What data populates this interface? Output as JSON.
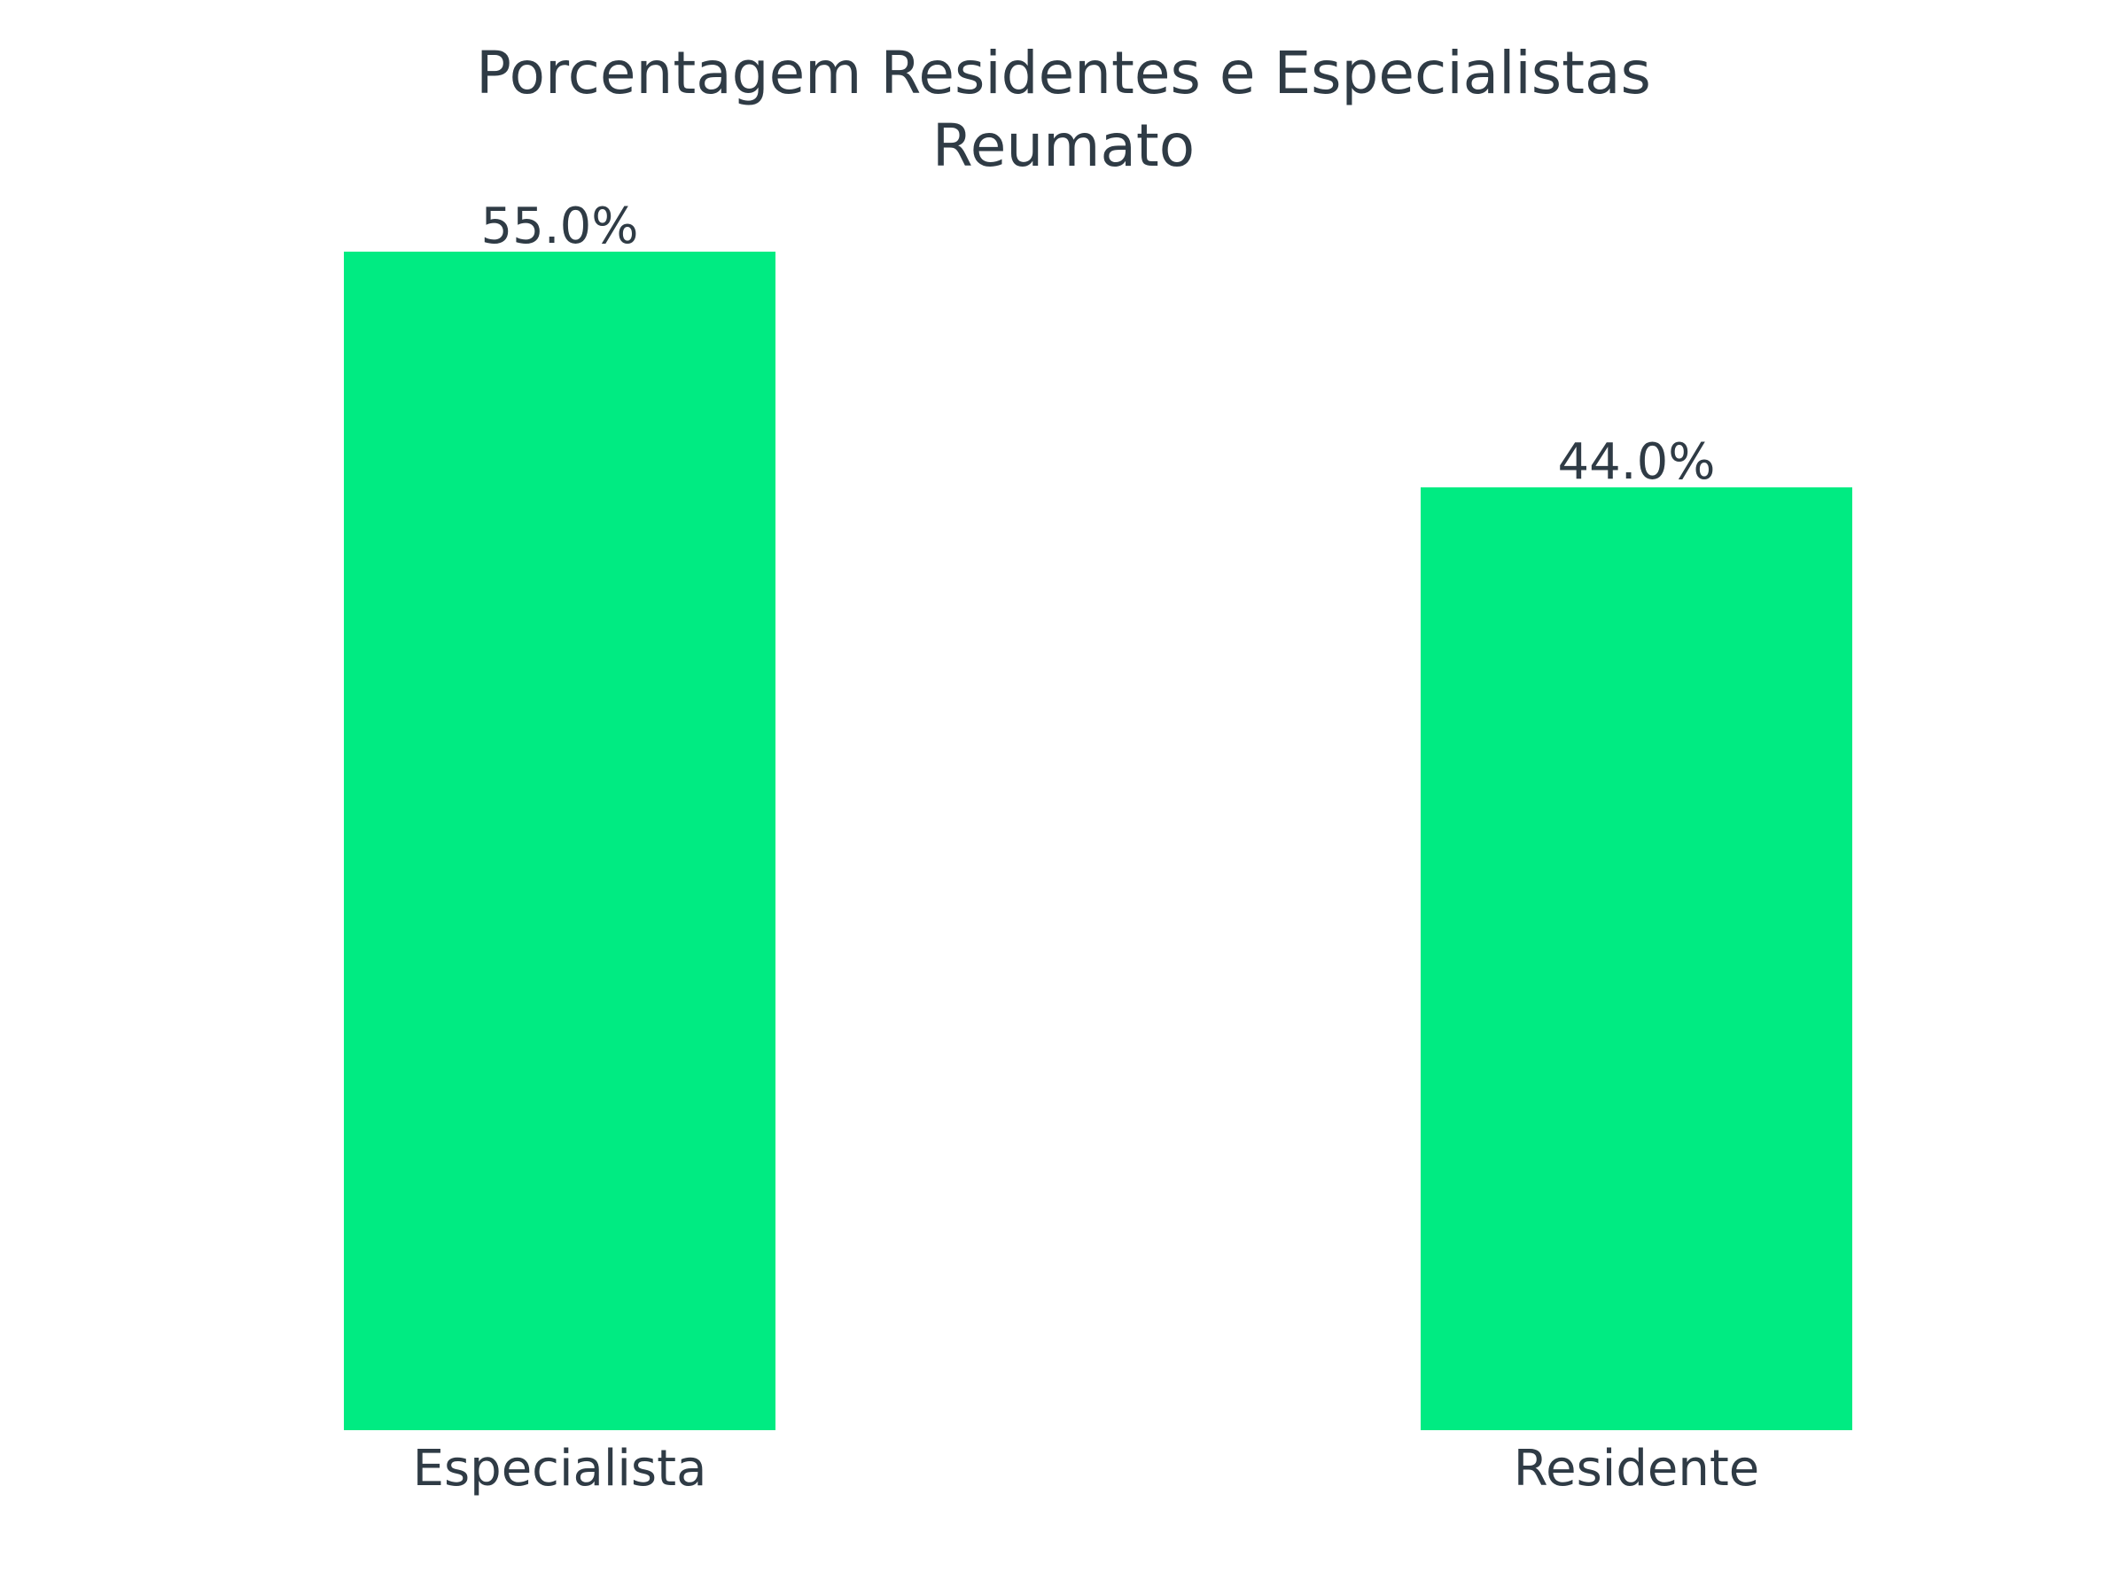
{
  "chart_data": {
    "type": "bar",
    "title_lines": [
      "Porcentagem Residentes e Especialistas",
      "Reumato"
    ],
    "categories": [
      "Especialista",
      "Residente"
    ],
    "values": [
      55.0,
      44.0
    ],
    "value_labels": [
      "55.0%",
      "44.0%"
    ],
    "xlabel": "",
    "ylabel": "",
    "ylim": [
      0,
      55.0
    ],
    "grid": false,
    "bar_color": "#00eb82",
    "text_color": "#2f3b45"
  }
}
